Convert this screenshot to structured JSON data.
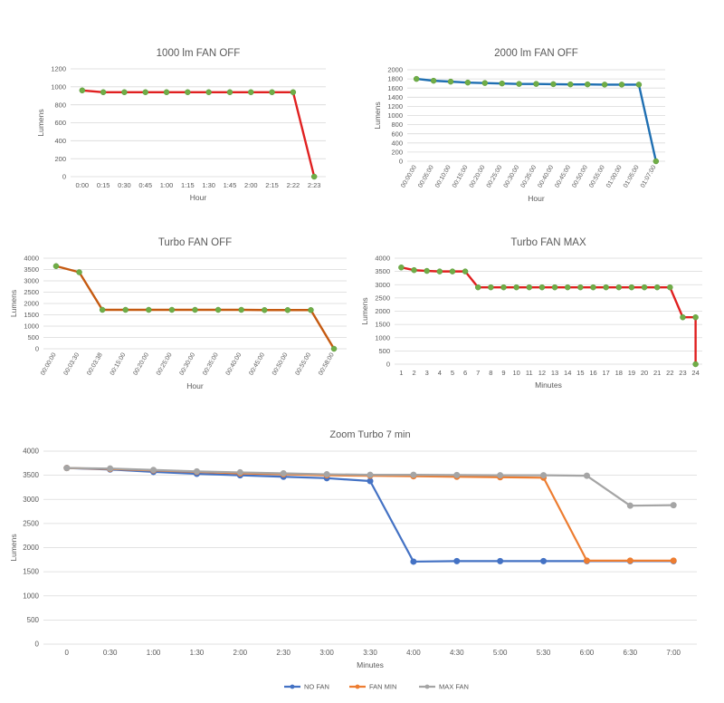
{
  "chart_data": [
    {
      "type": "line",
      "title": "1000 lm FAN OFF",
      "xlabel": "Hour",
      "ylabel": "Lumens",
      "ylim": [
        0,
        1200
      ],
      "yticks": [
        "0",
        "200",
        "400",
        "600",
        "800",
        "1000",
        "1200"
      ],
      "categories": [
        "0:00",
        "0:15",
        "0:30",
        "0:45",
        "1:00",
        "1:15",
        "1:30",
        "1:45",
        "2:00",
        "2:15",
        "2:22",
        "2:23"
      ],
      "series": [
        {
          "values": [
            960,
            940,
            940,
            940,
            940,
            940,
            940,
            940,
            940,
            940,
            940,
            0
          ],
          "color": "#e02020"
        }
      ],
      "grid": true,
      "rotate_ticks": false
    },
    {
      "type": "line",
      "title": "2000 lm FAN OFF",
      "xlabel": "Hour",
      "ylabel": "Lumens",
      "ylim": [
        0,
        2000
      ],
      "yticks": [
        "0",
        "200",
        "400",
        "600",
        "800",
        "1000",
        "1200",
        "1400",
        "1600",
        "1800",
        "2000"
      ],
      "categories": [
        "00:00:00",
        "00:05:00",
        "00:10:00",
        "00:15:00",
        "00:20:00",
        "00:25:00",
        "00:30:00",
        "00:35:00",
        "00:40:00",
        "00:45:00",
        "00:50:00",
        "00:55:00",
        "01:00:00",
        "01:05:00",
        "01:07:00"
      ],
      "series": [
        {
          "values": [
            1800,
            1760,
            1740,
            1720,
            1710,
            1700,
            1690,
            1690,
            1685,
            1680,
            1680,
            1675,
            1675,
            1675,
            0
          ],
          "color": "#1f6fb2"
        }
      ],
      "grid": true,
      "rotate_ticks": true
    },
    {
      "type": "line",
      "title": "Turbo FAN OFF",
      "xlabel": "Hour",
      "ylabel": "Lumens",
      "ylim": [
        0,
        4000
      ],
      "yticks": [
        "0",
        "500",
        "1000",
        "1500",
        "2000",
        "2500",
        "3000",
        "3500",
        "4000"
      ],
      "categories": [
        "00:00:00",
        "00:03:30",
        "00:03:38",
        "00:15:00",
        "00:20:00",
        "00:25:00",
        "00:30:00",
        "00:35:00",
        "00:40:00",
        "00:45:00",
        "00:50:00",
        "00:55:00",
        "00:58:00"
      ],
      "series": [
        {
          "values": [
            3650,
            3380,
            1720,
            1720,
            1720,
            1720,
            1720,
            1720,
            1720,
            1710,
            1710,
            1710,
            0
          ],
          "color": "#c55a11"
        }
      ],
      "grid": true,
      "rotate_ticks": true
    },
    {
      "type": "line",
      "title": "Turbo FAN MAX",
      "xlabel": "Minutes",
      "ylabel": "Lumens",
      "ylim": [
        0,
        4000
      ],
      "yticks": [
        "0",
        "500",
        "1000",
        "1500",
        "2000",
        "2500",
        "3000",
        "3500",
        "4000"
      ],
      "categories": [
        "1",
        "2",
        "3",
        "4",
        "5",
        "6",
        "7",
        "8",
        "9",
        "10",
        "11",
        "12",
        "13",
        "14",
        "15",
        "16",
        "17",
        "18",
        "19",
        "20",
        "21",
        "22",
        "23",
        "24"
      ],
      "series": [
        {
          "values": [
            3650,
            3550,
            3520,
            3500,
            3500,
            3500,
            2900,
            2900,
            2900,
            2900,
            2900,
            2900,
            2900,
            2900,
            2900,
            2900,
            2900,
            2900,
            2900,
            2900,
            2900,
            2900,
            1770,
            1770
          ],
          "color": "#e02020"
        }
      ],
      "extra_drop": {
        "value": 0
      },
      "grid": true,
      "rotate_ticks": false
    },
    {
      "type": "line",
      "title": "Zoom Turbo 7 min",
      "xlabel": "Minutes",
      "ylabel": "Lumens",
      "ylim": [
        0,
        4000
      ],
      "yticks": [
        "0",
        "500",
        "1000",
        "1500",
        "2000",
        "2500",
        "3000",
        "3500",
        "4000"
      ],
      "categories": [
        "0",
        "0:30",
        "1:00",
        "1:30",
        "2:00",
        "2:30",
        "3:00",
        "3:30",
        "4:00",
        "4:30",
        "5:00",
        "5:30",
        "6:00",
        "6:30",
        "7:00"
      ],
      "series": [
        {
          "name": "NO FAN",
          "color": "#4472c4",
          "values": [
            3650,
            3620,
            3570,
            3530,
            3500,
            3470,
            3440,
            3380,
            1710,
            1720,
            1720,
            1720,
            1720,
            1720,
            1720
          ]
        },
        {
          "name": "FAN MIN",
          "color": "#ed7d31",
          "values": [
            3650,
            3630,
            3600,
            3570,
            3540,
            3520,
            3500,
            3490,
            3480,
            3470,
            3460,
            3450,
            1730,
            1730,
            1730
          ]
        },
        {
          "name": "MAX FAN",
          "color": "#a5a5a5",
          "values": [
            3650,
            3640,
            3610,
            3580,
            3560,
            3540,
            3520,
            3510,
            3510,
            3505,
            3500,
            3500,
            3490,
            2870,
            2880
          ]
        }
      ],
      "legend": "bottom",
      "grid": true,
      "rotate_ticks": false
    }
  ]
}
